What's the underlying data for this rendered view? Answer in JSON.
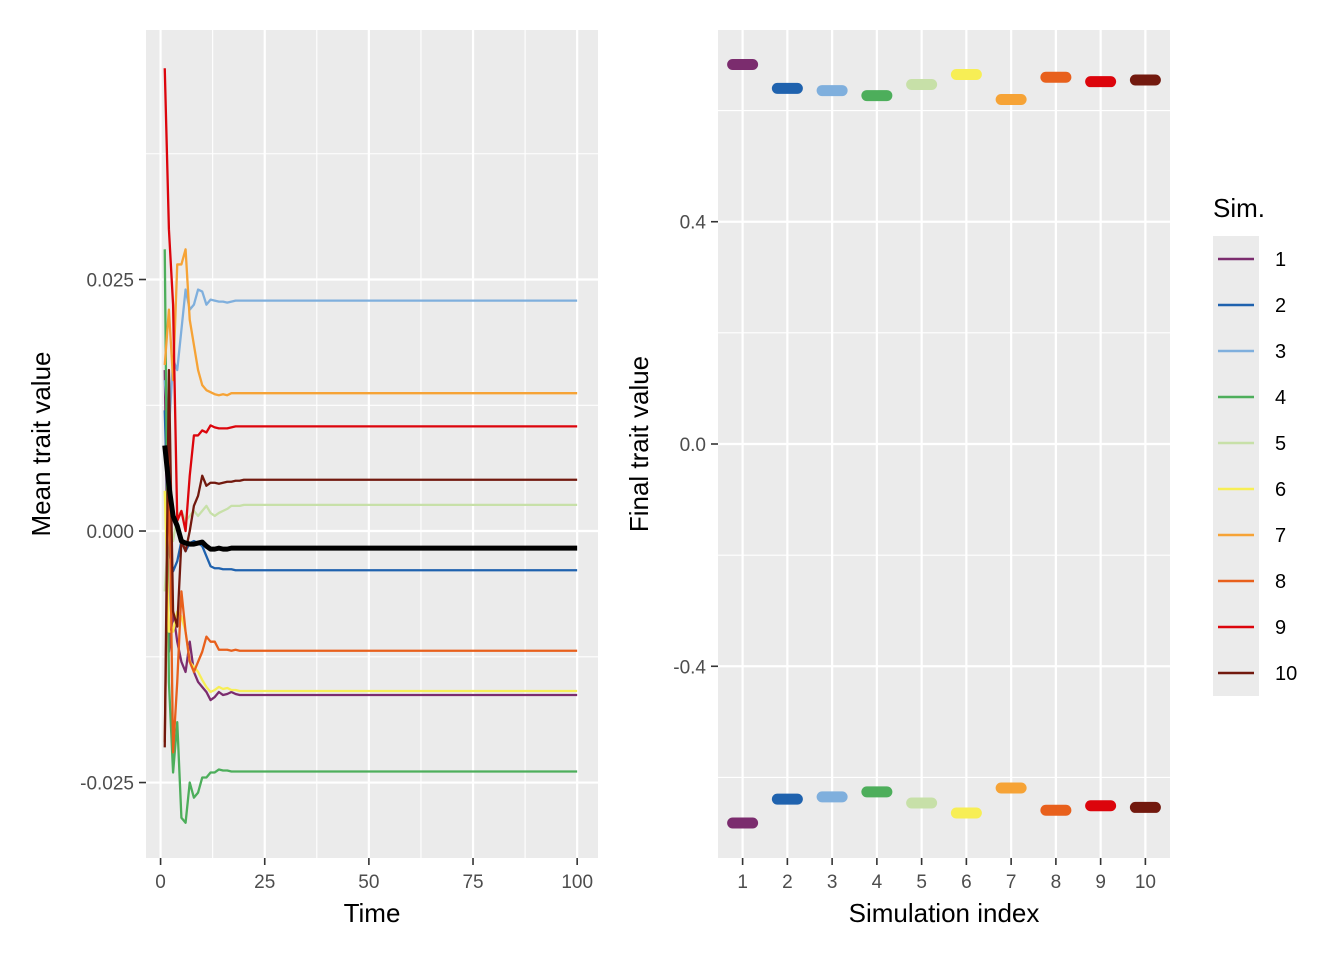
{
  "chart_data": [
    {
      "type": "line",
      "xlabel": "Time",
      "ylabel": "Mean trait value",
      "xlim": [
        -3.5,
        105
      ],
      "ylim": [
        -0.0325,
        0.0498
      ],
      "xticks": [
        0,
        25,
        50,
        75,
        100
      ],
      "xtick_labels": [
        "0",
        "25",
        "50",
        "75",
        "100"
      ],
      "yticks": [
        -0.025,
        0.0,
        0.025
      ],
      "ytick_labels": [
        "-0.025",
        "0.000",
        "0.025"
      ],
      "grid": true,
      "series": [
        {
          "name": "1",
          "color": "#7B2C6E",
          "x": [
            1,
            2,
            3,
            4,
            5,
            6,
            7,
            8,
            9,
            10,
            11,
            12,
            13,
            14,
            15,
            16,
            17,
            18,
            19,
            20,
            30,
            40,
            50,
            60,
            70,
            80,
            90,
            100
          ],
          "y": [
            0.016,
            -0.012,
            -0.008,
            -0.011,
            -0.013,
            -0.014,
            -0.011,
            -0.014,
            -0.015,
            -0.0155,
            -0.016,
            -0.0168,
            -0.0165,
            -0.016,
            -0.0163,
            -0.0162,
            -0.016,
            -0.0162,
            -0.0163,
            -0.0163,
            -0.0163,
            -0.0163,
            -0.0163,
            -0.0163,
            -0.0163,
            -0.0163,
            -0.0163,
            -0.0163
          ]
        },
        {
          "name": "2",
          "color": "#1F62AE",
          "x": [
            1,
            2,
            3,
            4,
            5,
            6,
            7,
            8,
            9,
            10,
            11,
            12,
            13,
            14,
            15,
            16,
            17,
            18,
            19,
            20,
            30,
            40,
            50,
            60,
            70,
            80,
            90,
            100
          ],
          "y": [
            0.012,
            -0.002,
            -0.004,
            -0.003,
            -0.001,
            -0.002,
            -0.0012,
            -0.001,
            -0.0012,
            -0.0015,
            -0.0025,
            -0.0035,
            -0.0037,
            -0.0037,
            -0.0038,
            -0.0038,
            -0.0038,
            -0.0039,
            -0.0039,
            -0.0039,
            -0.0039,
            -0.0039,
            -0.0039,
            -0.0039,
            -0.0039,
            -0.0039,
            -0.0039,
            -0.0039
          ]
        },
        {
          "name": "3",
          "color": "#7FAFDD",
          "x": [
            1,
            2,
            3,
            4,
            5,
            6,
            7,
            8,
            9,
            10,
            11,
            12,
            13,
            14,
            15,
            16,
            17,
            18,
            19,
            20,
            30,
            40,
            50,
            60,
            70,
            80,
            90,
            100
          ],
          "y": [
            0.015,
            0.01,
            0.017,
            0.016,
            0.02,
            0.024,
            0.022,
            0.0225,
            0.024,
            0.0238,
            0.0225,
            0.023,
            0.0229,
            0.0228,
            0.0228,
            0.0227,
            0.0228,
            0.0229,
            0.0229,
            0.0229,
            0.0229,
            0.0229,
            0.0229,
            0.0229,
            0.0229,
            0.0229,
            0.0229,
            0.0229
          ]
        },
        {
          "name": "4",
          "color": "#4DAE5B",
          "x": [
            1,
            2,
            3,
            4,
            5,
            6,
            7,
            8,
            9,
            10,
            11,
            12,
            13,
            14,
            15,
            16,
            17,
            18,
            19,
            20,
            30,
            40,
            50,
            60,
            70,
            80,
            90,
            100
          ],
          "y": [
            0.028,
            -0.015,
            -0.024,
            -0.019,
            -0.0285,
            -0.029,
            -0.025,
            -0.0265,
            -0.026,
            -0.0245,
            -0.0245,
            -0.024,
            -0.024,
            -0.0237,
            -0.0238,
            -0.0238,
            -0.0239,
            -0.0239,
            -0.0239,
            -0.0239,
            -0.0239,
            -0.0239,
            -0.0239,
            -0.0239,
            -0.0239,
            -0.0239,
            -0.0239,
            -0.0239
          ]
        },
        {
          "name": "5",
          "color": "#C7E0A8",
          "x": [
            1,
            2,
            3,
            4,
            5,
            6,
            7,
            8,
            9,
            10,
            11,
            12,
            13,
            14,
            15,
            16,
            17,
            18,
            19,
            20,
            30,
            40,
            50,
            60,
            70,
            80,
            90,
            100
          ],
          "y": [
            -0.006,
            0.001,
            -0.001,
            0.0015,
            0.002,
            0.001,
            0.0015,
            0.002,
            0.0015,
            0.002,
            0.0025,
            0.0018,
            0.0015,
            0.0018,
            0.002,
            0.0022,
            0.0025,
            0.0025,
            0.0025,
            0.0026,
            0.0026,
            0.0026,
            0.0026,
            0.0026,
            0.0026,
            0.0026,
            0.0026,
            0.0026
          ]
        },
        {
          "name": "6",
          "color": "#F7EE55",
          "x": [
            1,
            2,
            3,
            4,
            5,
            6,
            7,
            8,
            9,
            10,
            11,
            12,
            13,
            14,
            15,
            16,
            17,
            18,
            19,
            20,
            30,
            40,
            50,
            60,
            70,
            80,
            90,
            100
          ],
          "y": [
            0.004,
            -0.01,
            -0.01,
            -0.008,
            -0.0085,
            -0.01,
            -0.013,
            -0.0135,
            -0.014,
            -0.0148,
            -0.0155,
            -0.016,
            -0.0158,
            -0.0155,
            -0.0157,
            -0.0156,
            -0.0158,
            -0.0158,
            -0.0159,
            -0.0159,
            -0.0159,
            -0.0159,
            -0.0159,
            -0.0159,
            -0.0159,
            -0.0159,
            -0.0159,
            -0.0159
          ]
        },
        {
          "name": "7",
          "color": "#F6A336",
          "x": [
            1,
            2,
            3,
            4,
            5,
            6,
            7,
            8,
            9,
            10,
            11,
            12,
            13,
            14,
            15,
            16,
            17,
            18,
            19,
            20,
            30,
            40,
            50,
            60,
            70,
            80,
            90,
            100
          ],
          "y": [
            0.0165,
            0.022,
            0.015,
            0.0265,
            0.0265,
            0.028,
            0.021,
            0.0185,
            0.016,
            0.0145,
            0.014,
            0.0138,
            0.0136,
            0.0135,
            0.0136,
            0.0135,
            0.0137,
            0.0137,
            0.0137,
            0.0137,
            0.0137,
            0.0137,
            0.0137,
            0.0137,
            0.0137,
            0.0137,
            0.0137,
            0.0137
          ]
        },
        {
          "name": "8",
          "color": "#E8601C",
          "x": [
            1,
            2,
            3,
            4,
            5,
            6,
            7,
            8,
            9,
            10,
            11,
            12,
            13,
            14,
            15,
            16,
            17,
            18,
            19,
            20,
            30,
            40,
            50,
            60,
            70,
            80,
            90,
            100
          ],
          "y": [
            -0.021,
            0.008,
            -0.022,
            -0.015,
            -0.006,
            -0.01,
            -0.013,
            -0.014,
            -0.013,
            -0.012,
            -0.0105,
            -0.011,
            -0.011,
            -0.0118,
            -0.0118,
            -0.0118,
            -0.0119,
            -0.0118,
            -0.0119,
            -0.0119,
            -0.0119,
            -0.0119,
            -0.0119,
            -0.0119,
            -0.0119,
            -0.0119,
            -0.0119,
            -0.0119
          ]
        },
        {
          "name": "9",
          "color": "#DC050C",
          "x": [
            1,
            2,
            3,
            4,
            5,
            6,
            7,
            8,
            9,
            10,
            11,
            12,
            13,
            14,
            15,
            16,
            17,
            18,
            19,
            20,
            30,
            40,
            50,
            60,
            70,
            80,
            90,
            100
          ],
          "y": [
            0.046,
            0.03,
            0.0225,
            0.001,
            0.002,
            0.0,
            0.0055,
            0.0095,
            0.0095,
            0.01,
            0.0098,
            0.0105,
            0.0103,
            0.0102,
            0.0102,
            0.0102,
            0.0103,
            0.0104,
            0.0104,
            0.0104,
            0.0104,
            0.0104,
            0.0104,
            0.0104,
            0.0104,
            0.0104,
            0.0104,
            0.0104
          ]
        },
        {
          "name": "10",
          "color": "#72190E",
          "x": [
            1,
            2,
            3,
            4,
            5,
            6,
            7,
            8,
            9,
            10,
            11,
            12,
            13,
            14,
            15,
            16,
            17,
            18,
            19,
            20,
            30,
            40,
            50,
            60,
            70,
            80,
            90,
            100
          ],
          "y": [
            -0.0215,
            0.016,
            -0.008,
            -0.0095,
            -0.001,
            -0.002,
            0.0,
            0.0025,
            0.0035,
            0.0055,
            0.0045,
            0.0048,
            0.0048,
            0.0047,
            0.0048,
            0.0049,
            0.0049,
            0.005,
            0.005,
            0.0051,
            0.0051,
            0.0051,
            0.0051,
            0.0051,
            0.0051,
            0.0051,
            0.0051,
            0.0051
          ]
        },
        {
          "name": "",
          "color": "#000000",
          "x": [
            1,
            2,
            3,
            4,
            5,
            6,
            7,
            8,
            9,
            10,
            11,
            12,
            13,
            14,
            15,
            16,
            17,
            18,
            19,
            20,
            30,
            40,
            50,
            60,
            70,
            80,
            90,
            100
          ],
          "y": [
            0.0085,
            0.0045,
            0.0015,
            0.0005,
            -0.001,
            -0.0012,
            -0.0013,
            -0.0013,
            -0.0012,
            -0.0011,
            -0.0015,
            -0.0018,
            -0.0018,
            -0.0017,
            -0.0018,
            -0.0018,
            -0.0017,
            -0.0017,
            -0.0017,
            -0.0017,
            -0.0017,
            -0.0017,
            -0.0017,
            -0.0017,
            -0.0017,
            -0.0017,
            -0.0017,
            -0.0017
          ]
        }
      ]
    },
    {
      "type": "scatter",
      "xlabel": "Simulation index",
      "ylabel": "Final trait value",
      "xlim": [
        0.45,
        10.55
      ],
      "ylim": [
        -0.745,
        0.745
      ],
      "xticks": [
        1,
        2,
        3,
        4,
        5,
        6,
        7,
        8,
        9,
        10
      ],
      "xtick_labels": [
        "1",
        "2",
        "3",
        "4",
        "5",
        "6",
        "7",
        "8",
        "9",
        "10"
      ],
      "yticks": [
        -0.4,
        0.0,
        0.4
      ],
      "ytick_labels": [
        "-0.4",
        "0.0",
        "0.4"
      ],
      "grid": true,
      "points": [
        {
          "sim": "1",
          "color": "#7B2C6E",
          "upper": 0.683,
          "lower": -0.682
        },
        {
          "sim": "2",
          "color": "#1F62AE",
          "upper": 0.64,
          "lower": -0.639
        },
        {
          "sim": "3",
          "color": "#7FAFDD",
          "upper": 0.636,
          "lower": -0.635
        },
        {
          "sim": "4",
          "color": "#4DAE5B",
          "upper": 0.627,
          "lower": -0.626
        },
        {
          "sim": "5",
          "color": "#C7E0A8",
          "upper": 0.647,
          "lower": -0.646
        },
        {
          "sim": "6",
          "color": "#F7EE55",
          "upper": 0.665,
          "lower": -0.664
        },
        {
          "sim": "7",
          "color": "#F6A336",
          "upper": 0.62,
          "lower": -0.619
        },
        {
          "sim": "8",
          "color": "#E8601C",
          "upper": 0.66,
          "lower": -0.659
        },
        {
          "sim": "9",
          "color": "#DC050C",
          "upper": 0.652,
          "lower": -0.651
        },
        {
          "sim": "10",
          "color": "#72190E",
          "upper": 0.655,
          "lower": -0.654
        }
      ]
    }
  ],
  "legend": {
    "title": "Sim.",
    "placement": "right",
    "items": [
      {
        "label": "1",
        "color": "#7B2C6E"
      },
      {
        "label": "2",
        "color": "#1F62AE"
      },
      {
        "label": "3",
        "color": "#7FAFDD"
      },
      {
        "label": "4",
        "color": "#4DAE5B"
      },
      {
        "label": "5",
        "color": "#C7E0A8"
      },
      {
        "label": "6",
        "color": "#F7EE55"
      },
      {
        "label": "7",
        "color": "#F6A336"
      },
      {
        "label": "8",
        "color": "#E8601C"
      },
      {
        "label": "9",
        "color": "#DC050C"
      },
      {
        "label": "10",
        "color": "#72190E"
      }
    ]
  },
  "colors": {
    "panel_background": "#EBEBEB",
    "grid_major": "#FFFFFF",
    "mean_line": "#000000"
  }
}
